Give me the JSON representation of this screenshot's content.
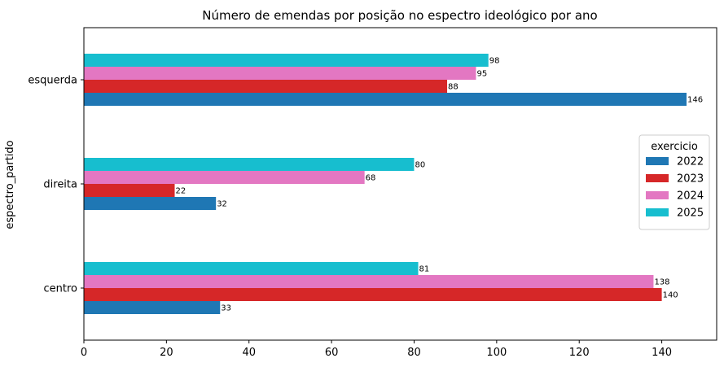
{
  "chart_data": {
    "type": "bar",
    "orientation": "horizontal",
    "title": "Número de emendas por posição no espectro ideológico por ano",
    "ylabel": "espectro_partido",
    "xlabel": "",
    "categories": [
      "centro",
      "direita",
      "esquerda"
    ],
    "series": [
      {
        "name": "2022",
        "color": "#1f77b4",
        "values": [
          33,
          32,
          146
        ]
      },
      {
        "name": "2023",
        "color": "#d62728",
        "values": [
          140,
          22,
          88
        ]
      },
      {
        "name": "2024",
        "color": "#e377c2",
        "values": [
          138,
          68,
          95
        ]
      },
      {
        "name": "2025",
        "color": "#17becf",
        "values": [
          81,
          80,
          98
        ]
      }
    ],
    "xlim": [
      0,
      153.3
    ],
    "xticks": [
      0,
      20,
      40,
      60,
      80,
      100,
      120,
      140
    ],
    "legend": {
      "title": "exercicio",
      "placement": "center-right"
    },
    "grid": false
  }
}
